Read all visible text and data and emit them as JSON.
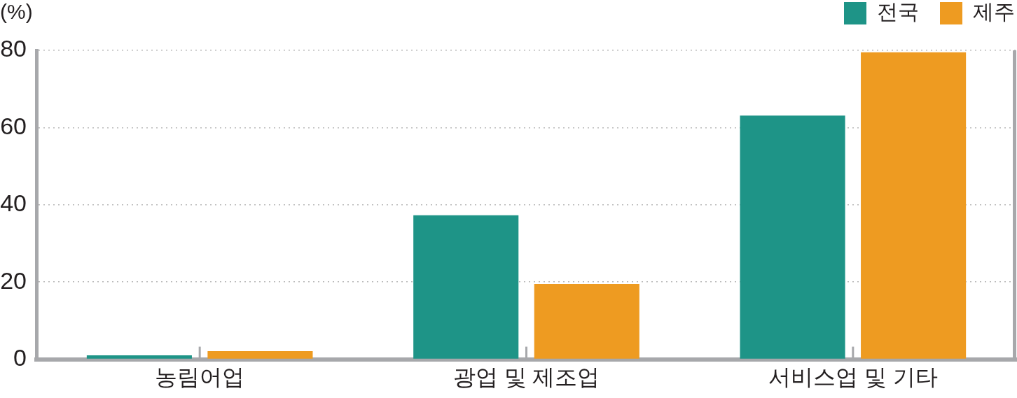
{
  "chart_data": {
    "type": "bar",
    "ylabel": "(%)",
    "categories": [
      "농림어업",
      "광업 및 제조업",
      "서비스업 및 기타"
    ],
    "series": [
      {
        "name": "전국",
        "color": "#1e9487",
        "values": [
          1.0,
          37.3,
          63.1
        ]
      },
      {
        "name": "제주",
        "color": "#ee9b21",
        "values": [
          2.1,
          19.5,
          79.5
        ]
      }
    ],
    "ylim": [
      0,
      80
    ],
    "yticks": [
      0,
      20,
      40,
      60,
      80
    ],
    "grid": "y",
    "legend": "top right"
  }
}
